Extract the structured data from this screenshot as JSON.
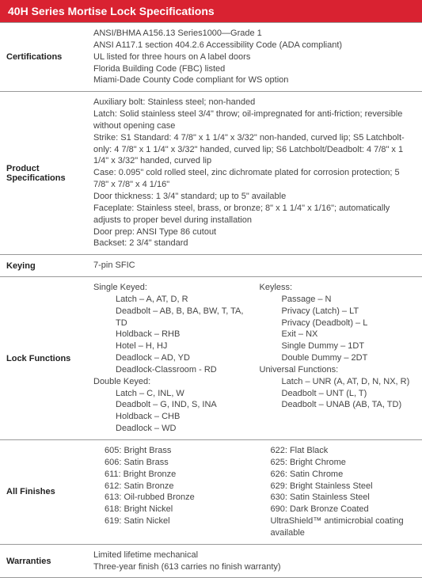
{
  "title": "40H Series Mortise Lock Specifications",
  "colors": {
    "header_bg": "#d92231",
    "header_fg": "#ffffff",
    "border": "#999999",
    "text": "#333333"
  },
  "rows": {
    "certifications": {
      "label": "Certifications",
      "lines": [
        "ANSI/BHMA A156.13 Series1000—Grade 1",
        "ANSI A117.1 section 404.2.6 Accessibility Code (ADA compliant)",
        "UL listed for three hours on A label doors",
        "Florida Building Code (FBC) listed",
        "Miami-Dade County Code compliant for WS option"
      ]
    },
    "product_specs": {
      "label": "Product Specifications",
      "lines": [
        "Auxiliary bolt: Stainless steel; non-handed",
        "Latch: Solid stainless steel 3/4\" throw; oil-impregnated for anti-friction; reversible without opening case",
        "Strike: S1 Standard: 4 7/8\" x 1 1/4\" x 3/32\" non-handed, curved lip; S5 Latchbolt-only: 4 7/8\" x 1 1/4\" x 3/32\" handed, curved lip; S6 Latchbolt/Deadbolt: 4 7/8\" x 1 1/4\" x 3/32\" handed, curved lip",
        "Case: 0.095\" cold rolled steel, zinc dichromate plated for corrosion protection; 5 7/8\" x 7/8\" x 4 1/16\"",
        "Door thickness: 1 3/4\" standard; up to 5\" available",
        "Faceplate: Stainless steel, brass, or bronze; 8\" x 1 1/4\" x 1/16\"; automatically adjusts to proper bevel during installation",
        "Door prep: ANSI Type 86 cutout",
        "Backset: 2 3/4\" standard"
      ]
    },
    "keying": {
      "label": "Keying",
      "value": "7-pin SFIC"
    },
    "lock_functions": {
      "label": "Lock Functions",
      "col1": [
        {
          "t": "Single Keyed:",
          "i": 0
        },
        {
          "t": "Latch – A, AT, D, R",
          "i": 2
        },
        {
          "t": "Deadbolt – AB, B, BA, BW, T, TA, TD",
          "i": 2
        },
        {
          "t": "Holdback – RHB",
          "i": 2
        },
        {
          "t": "Hotel – H, HJ",
          "i": 2
        },
        {
          "t": "Deadlock – AD, YD",
          "i": 2
        },
        {
          "t": "Deadlock-Classroom - RD",
          "i": 2
        },
        {
          "t": "Double Keyed:",
          "i": 0
        },
        {
          "t": "Latch – C, INL, W",
          "i": 2
        },
        {
          "t": "Deadbolt – G, IND, S, INA",
          "i": 2
        },
        {
          "t": "Holdback – CHB",
          "i": 2
        },
        {
          "t": "Deadlock – WD",
          "i": 2
        }
      ],
      "col2": [
        {
          "t": "Keyless:",
          "i": 0
        },
        {
          "t": "Passage – N",
          "i": 2
        },
        {
          "t": "Privacy (Latch) – LT",
          "i": 2
        },
        {
          "t": "Privacy (Deadbolt) – L",
          "i": 2
        },
        {
          "t": "Exit – NX",
          "i": 2
        },
        {
          "t": "Single Dummy – 1DT",
          "i": 2
        },
        {
          "t": "Double Dummy – 2DT",
          "i": 2
        },
        {
          "t": "Universal Functions:",
          "i": 0
        },
        {
          "t": "Latch – UNR (A, AT, D, N, NX, R)",
          "i": 2
        },
        {
          "t": "Deadbolt – UNT (L, T)",
          "i": 2
        },
        {
          "t": "Deadbolt – UNAB (AB, TA, TD)",
          "i": 2
        }
      ]
    },
    "finishes": {
      "label": "All Finishes",
      "col1": [
        "605: Bright Brass",
        "606: Satin Brass",
        "611: Bright Bronze",
        "612: Satin Bronze",
        "613: Oil-rubbed Bronze",
        "618: Bright Nickel",
        "619: Satin Nickel"
      ],
      "col2": [
        "622: Flat Black",
        "625: Bright Chrome",
        "626: Satin Chrome",
        "629: Bright Stainless Steel",
        "630: Satin Stainless Steel",
        "690: Dark Bronze Coated",
        "UltraShield™ antimicrobial coating available"
      ]
    },
    "warranties": {
      "label": "Warranties",
      "lines": [
        "Limited lifetime mechanical",
        "Three-year finish (613 carries no finish warranty)"
      ]
    }
  }
}
